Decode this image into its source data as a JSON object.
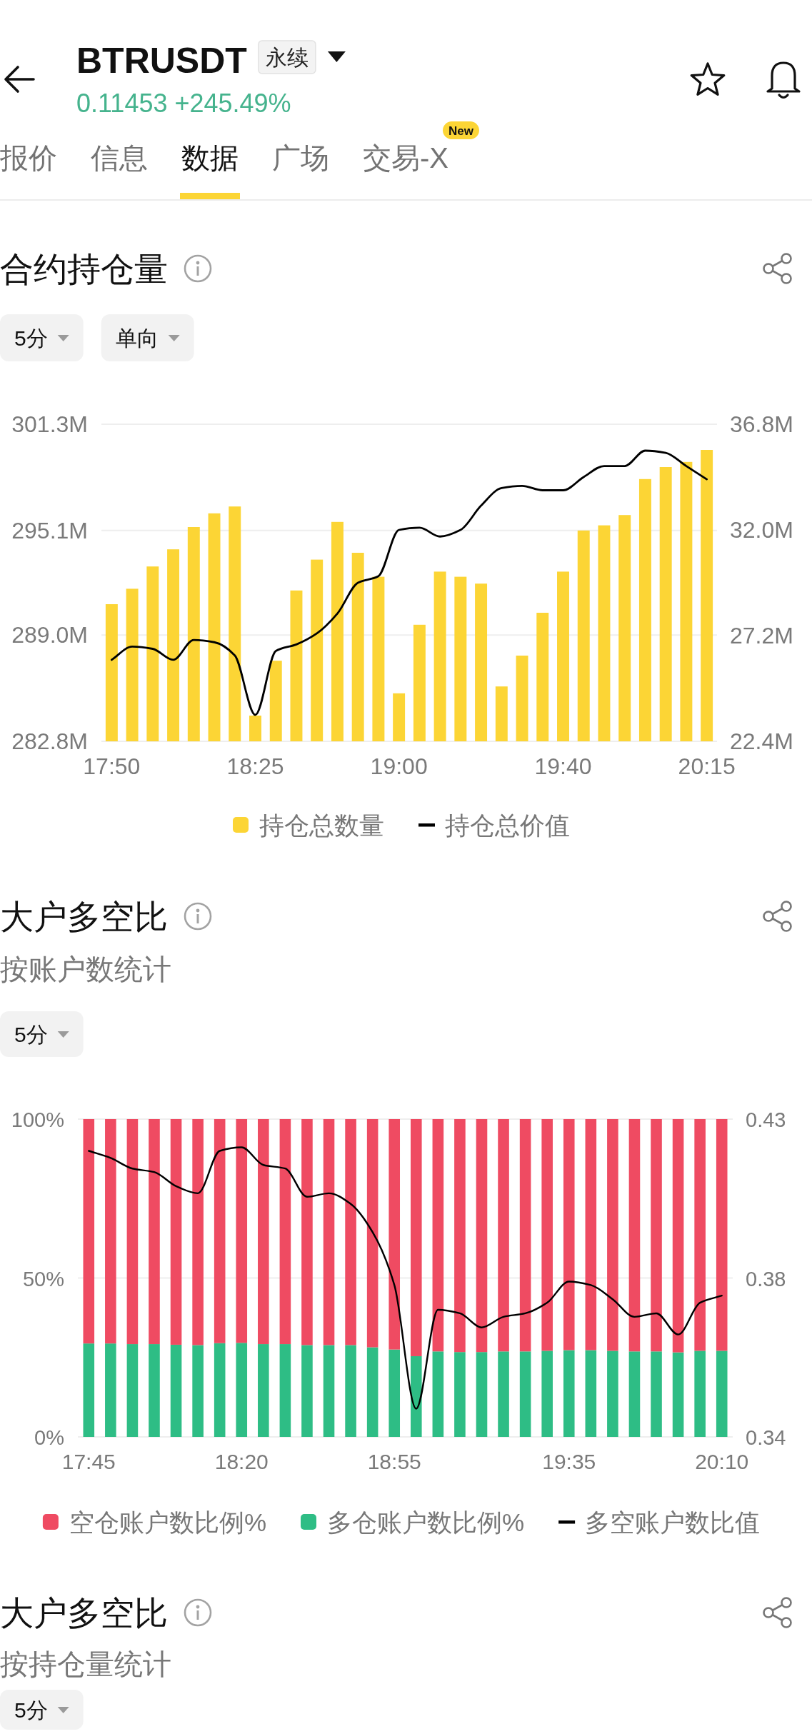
{
  "chart_data": [
    {
      "type": "other",
      "title": "BTRUSDT",
      "subtitle": "0.11453 +245.49%",
      "annotations": [
        "永续",
        "报价",
        "信息",
        "数据",
        "广场",
        "交易-X",
        "New"
      ]
    },
    {
      "type": "bar",
      "title": "合约持仓量",
      "annotations": [
        "5分",
        "单向"
      ],
      "categories": [
        "17:50",
        null,
        null,
        null,
        null,
        null,
        null,
        "18:25",
        null,
        null,
        null,
        null,
        null,
        null,
        "19:00",
        null,
        null,
        null,
        null,
        null,
        null,
        null,
        "19:40",
        null,
        null,
        null,
        null,
        null,
        null,
        "20:15"
      ],
      "series": [
        {
          "name": "持仓总数量",
          "color": "#fcd535",
          "values": [
            290.8,
            291.7,
            293.0,
            294.0,
            295.3,
            296.1,
            296.5,
            284.3,
            287.5,
            291.6,
            293.4,
            295.6,
            293.8,
            292.4,
            285.6,
            289.6,
            292.7,
            292.4,
            292.0,
            286.0,
            287.8,
            290.3,
            292.7,
            295.1,
            295.4,
            296.0,
            298.1,
            298.8,
            299.1,
            299.8
          ]
        },
        {
          "name": "持仓总价值",
          "type": "line",
          "axis": "y2",
          "color": "#000000",
          "values": [
            26.1,
            26.7,
            26.6,
            26.1,
            27.0,
            26.9,
            26.3,
            23.6,
            26.5,
            26.8,
            27.3,
            28.2,
            29.6,
            29.9,
            32.0,
            32.1,
            31.7,
            32.0,
            33.1,
            33.9,
            34.0,
            33.8,
            33.8,
            34.4,
            34.9,
            34.9,
            35.6,
            35.5,
            34.9,
            34.3
          ]
        }
      ],
      "ylim": [
        282.8,
        301.3
      ],
      "yticks": [
        {
          "value": 282.8,
          "label": "282.8M"
        },
        {
          "value": 289.0,
          "label": "289.0M"
        },
        {
          "value": 295.1,
          "label": "295.1M"
        },
        {
          "value": 301.3,
          "label": "301.3M"
        }
      ],
      "y2lim": [
        22.4,
        36.8
      ],
      "y2ticks": [
        {
          "value": 22.4,
          "label": "22.4M"
        },
        {
          "value": 27.2,
          "label": "27.2M"
        },
        {
          "value": 32.0,
          "label": "32.0M"
        },
        {
          "value": 36.8,
          "label": "36.8M"
        }
      ],
      "grid": "y",
      "legend": "bottom"
    },
    {
      "type": "bar",
      "title": "大户多空比",
      "subtitle": "按账户数统计",
      "annotations": [
        "5分"
      ],
      "stacked": true,
      "categories": [
        "17:45",
        null,
        null,
        null,
        null,
        null,
        null,
        "18:20",
        null,
        null,
        null,
        null,
        null,
        null,
        "18:55",
        null,
        null,
        null,
        null,
        null,
        null,
        null,
        "19:35",
        null,
        null,
        null,
        null,
        null,
        null,
        "20:10"
      ],
      "series": [
        {
          "name": "多仓账户数比例%",
          "color": "#2ebd85",
          "values": [
            29.4,
            29.4,
            29.2,
            29.2,
            29.0,
            28.9,
            29.5,
            29.6,
            29.2,
            29.2,
            28.9,
            28.9,
            28.9,
            28.2,
            27.5,
            25.4,
            26.9,
            26.7,
            26.7,
            26.9,
            26.9,
            27.1,
            27.3,
            27.3,
            27.1,
            26.9,
            26.9,
            26.6,
            27.1,
            27.1
          ]
        },
        {
          "name": "空仓账户数比例%",
          "color": "#ef4b62",
          "values": [
            70.6,
            70.6,
            70.8,
            70.8,
            71.0,
            71.1,
            70.5,
            70.4,
            70.8,
            70.8,
            71.1,
            71.1,
            71.1,
            71.8,
            72.5,
            74.6,
            73.1,
            73.3,
            73.3,
            73.1,
            73.1,
            72.9,
            72.7,
            72.7,
            72.9,
            73.1,
            73.1,
            73.4,
            72.9,
            72.9
          ]
        },
        {
          "name": "多空账户数比值",
          "type": "line",
          "axis": "y2",
          "color": "#000000",
          "values": [
            0.421,
            0.419,
            0.416,
            0.415,
            0.411,
            0.409,
            0.421,
            0.422,
            0.417,
            0.416,
            0.408,
            0.409,
            0.406,
            0.398,
            0.383,
            0.348,
            0.376,
            0.375,
            0.371,
            0.374,
            0.375,
            0.378,
            0.384,
            0.383,
            0.379,
            0.374,
            0.375,
            0.369,
            0.378,
            0.38
          ]
        }
      ],
      "ylim": [
        0,
        100
      ],
      "yticks": [
        {
          "value": 0,
          "label": "0%"
        },
        {
          "value": 50,
          "label": "50%"
        },
        {
          "value": 100,
          "label": "100%"
        }
      ],
      "y2lim": [
        0.34,
        0.43
      ],
      "y2ticks": [
        0.34,
        {
          "value": 0.385,
          "label": "0.38"
        },
        0.43
      ],
      "grid": "y",
      "legend": "bottom"
    },
    {
      "type": "other",
      "title": "大户多空比",
      "subtitle": "按持仓量统计",
      "annotations": [
        "5分"
      ]
    }
  ]
}
